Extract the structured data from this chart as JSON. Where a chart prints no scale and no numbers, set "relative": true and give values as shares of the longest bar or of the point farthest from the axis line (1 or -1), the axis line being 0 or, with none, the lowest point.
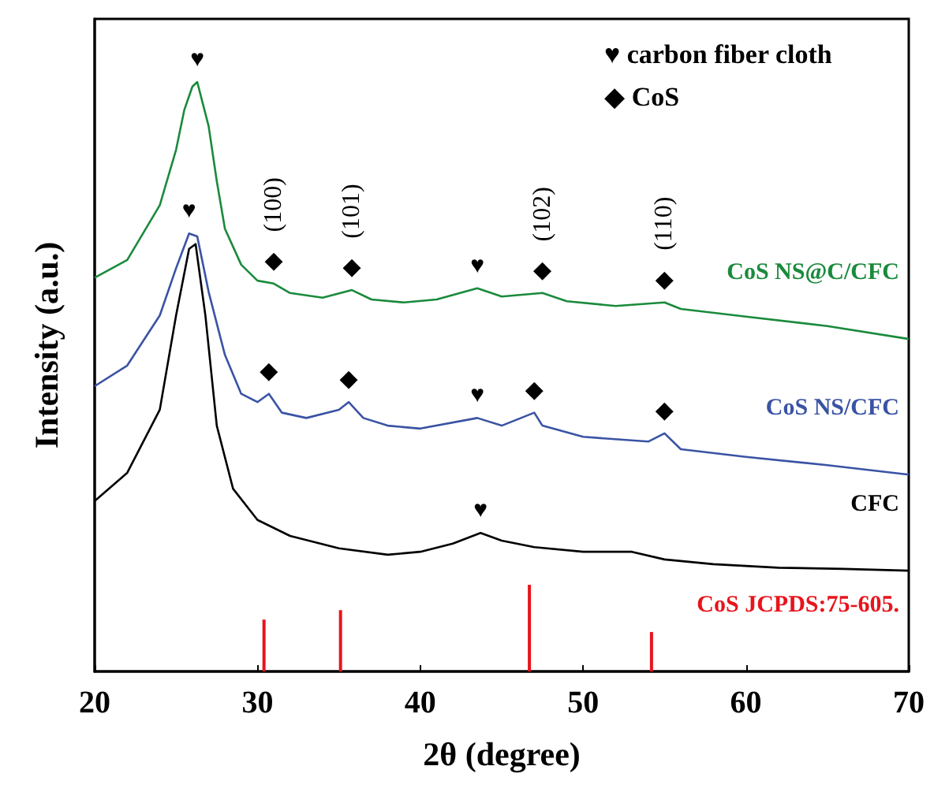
{
  "chart_data": {
    "type": "line",
    "relative": true,
    "xlabel": "2θ (degree)",
    "ylabel": "Intensity (a.u.)",
    "xlim": [
      20,
      70
    ],
    "xticks": [
      20,
      30,
      40,
      50,
      60,
      70
    ],
    "grid": false,
    "legend": false,
    "marker": "none",
    "series": [
      {
        "name": "CoS NS@C/CFC",
        "color": "#1a8a3c",
        "x": [
          20,
          22,
          24,
          25,
          25.5,
          26,
          26.3,
          27,
          27.5,
          28,
          29,
          30,
          31,
          32,
          34,
          35.8,
          37,
          39,
          41,
          43.5,
          45,
          47.5,
          49,
          52,
          55,
          56,
          60,
          65,
          70
        ],
        "values": [
          0.668,
          0.698,
          0.791,
          0.885,
          0.952,
          0.992,
          1,
          0.925,
          0.832,
          0.751,
          0.69,
          0.663,
          0.658,
          0.642,
          0.634,
          0.647,
          0.631,
          0.626,
          0.631,
          0.65,
          0.636,
          0.642,
          0.628,
          0.62,
          0.626,
          0.615,
          0.602,
          0.586,
          0.564
        ]
      },
      {
        "name": "CoS NS/CFC",
        "color": "#3a53a4",
        "x": [
          20,
          22,
          24,
          25,
          25.8,
          26.3,
          27,
          28,
          29,
          30,
          30.7,
          31.5,
          33,
          35,
          35.6,
          36.5,
          38,
          40,
          43.5,
          45,
          47,
          47.5,
          50,
          54,
          55,
          56,
          60,
          65,
          70
        ],
        "values": [
          0.484,
          0.519,
          0.604,
          0.684,
          0.743,
          0.738,
          0.644,
          0.537,
          0.471,
          0.457,
          0.471,
          0.439,
          0.43,
          0.444,
          0.457,
          0.43,
          0.417,
          0.412,
          0.43,
          0.417,
          0.439,
          0.417,
          0.398,
          0.39,
          0.404,
          0.377,
          0.364,
          0.35,
          0.334
        ]
      },
      {
        "name": "CFC",
        "color": "#000000",
        "x": [
          20,
          22,
          24,
          25,
          25.8,
          26.2,
          26.8,
          27.5,
          28.5,
          30,
          32,
          35,
          38,
          40,
          42,
          43.7,
          45,
          47,
          50,
          53,
          55,
          58,
          62,
          66,
          70
        ],
        "values": [
          0.289,
          0.337,
          0.444,
          0.604,
          0.717,
          0.725,
          0.604,
          0.417,
          0.31,
          0.257,
          0.23,
          0.209,
          0.198,
          0.203,
          0.217,
          0.235,
          0.222,
          0.211,
          0.203,
          0.203,
          0.19,
          0.182,
          0.176,
          0.174,
          0.171
        ]
      },
      {
        "name": "CoS JCPDS:75-605.",
        "type": "bar",
        "color": "#e8141c",
        "x": [
          30.4,
          35.1,
          46.7,
          54.2
        ],
        "values": [
          0.088,
          0.104,
          0.147,
          0.067
        ]
      }
    ],
    "annotations": [
      "♥ carbon fiber cloth",
      "◆ CoS",
      {
        "text": "♥",
        "x": 26.3,
        "y": 1
      },
      {
        "text": "♥",
        "x": 25.8,
        "y": 0.743
      },
      {
        "text": "♥",
        "x": 43.5,
        "y": 0.65
      },
      {
        "text": "♥",
        "x": 43.5,
        "y": 0.43
      },
      {
        "text": "♥",
        "x": 43.7,
        "y": 0.235
      },
      {
        "text": "◆",
        "x": 31,
        "y": 0.658
      },
      {
        "text": "◆",
        "x": 35.8,
        "y": 0.647
      },
      {
        "text": "◆",
        "x": 47.5,
        "y": 0.642
      },
      {
        "text": "◆",
        "x": 55,
        "y": 0.626
      },
      {
        "text": "◆",
        "x": 30.7,
        "y": 0.471
      },
      {
        "text": "◆",
        "x": 35.6,
        "y": 0.457
      },
      {
        "text": "◆",
        "x": 47,
        "y": 0.439
      },
      {
        "text": "◆",
        "x": 55,
        "y": 0.404
      },
      {
        "text": "(100)",
        "x": 31,
        "y": 0.658
      },
      {
        "text": "(101)",
        "x": 35.8,
        "y": 0.647
      },
      {
        "text": "(102)",
        "x": 47.5,
        "y": 0.642
      },
      {
        "text": "(110)",
        "x": 55,
        "y": 0.626
      }
    ]
  }
}
